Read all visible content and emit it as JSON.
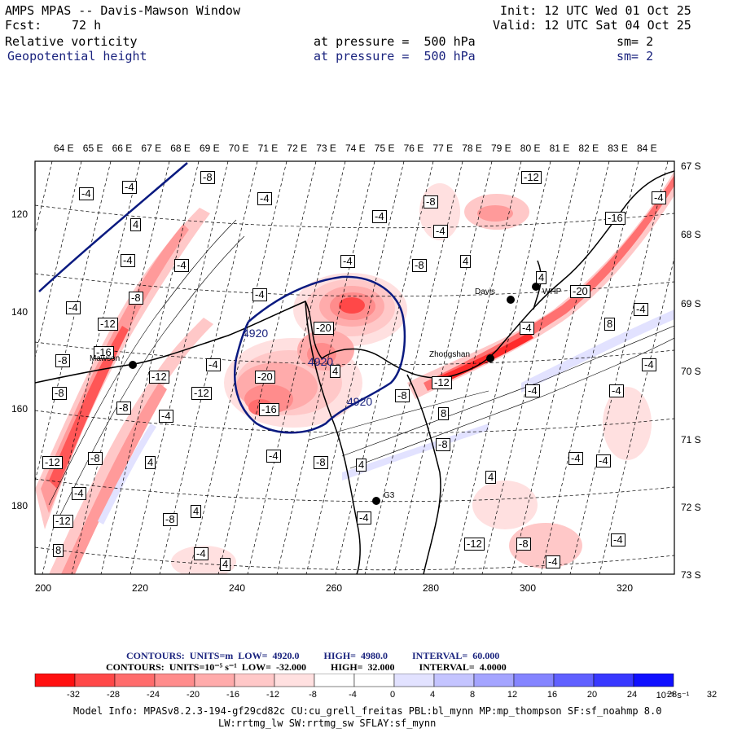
{
  "header": {
    "title": "AMPS MPAS -- Davis-Mawson Window",
    "fcst_label": "Fcst:",
    "fcst_value": "72 h",
    "init": "Init: 12 UTC Wed 01 Oct 25",
    "valid": "Valid: 12 UTC Sat 04 Oct 25",
    "field1": {
      "name": "Relative vorticity",
      "level": "at pressure =  500 hPa",
      "sm": "sm= 2"
    },
    "field2": {
      "name": "Geopotential height",
      "level": "at pressure =  500 hPa",
      "sm": "sm= 2"
    }
  },
  "map": {
    "lon_labels": [
      "64 E",
      "65 E",
      "66 E",
      "67 E",
      "68 E",
      "69 E",
      "70 E",
      "71 E",
      "72 E",
      "73 E",
      "74 E",
      "75 E",
      "76 E",
      "77 E",
      "78 E",
      "79 E",
      "80 E",
      "81 E",
      "82 E",
      "83 E",
      "84 E"
    ],
    "lat_labels": [
      "67 S",
      "68 S",
      "69 S",
      "70 S",
      "71 S",
      "72 S",
      "73 S"
    ],
    "y_ticks": [
      "120",
      "140",
      "160",
      "180"
    ],
    "x_ticks": [
      "200",
      "220",
      "240",
      "260",
      "280",
      "300",
      "320"
    ],
    "stations": {
      "davis": "Davis",
      "mawson": "Mawson",
      "zhongshan": "Zhongshan",
      "g3": "G3",
      "whp": "WHP"
    },
    "height_labels": [
      "4920",
      "4920",
      "4920"
    ],
    "vort_labels": [
      "-4",
      "-4",
      "-8",
      "-4",
      "-4",
      "-8",
      "-4",
      "-12",
      "4",
      "-4",
      "-4",
      "4",
      "-8",
      "-4",
      "-8",
      "-4",
      "-4",
      "4",
      "-12",
      "-12",
      "-4",
      "-20",
      "-16",
      "4",
      "-16",
      "-12",
      "-8",
      "-8",
      "-20",
      "-8",
      "-4",
      "-4",
      "-12",
      "-8",
      "-12",
      "-4",
      "-16",
      "8",
      "-8",
      "-20",
      "-4",
      "4",
      "8",
      "-8",
      "-4",
      "4",
      "-8",
      "-4",
      "-4",
      "-8",
      "-4",
      "-4",
      "-8",
      "-12",
      "-4",
      "-4",
      "-4",
      "-12",
      "4",
      "4",
      "4",
      "-4",
      "-4",
      "-4",
      "8"
    ]
  },
  "legend": {
    "line1": "CONTOURS:  UNITS=m  LOW=  4920.0          HIGH=  4980.0          INTERVAL=  60.000",
    "line2": "CONTOURS:  UNITS=10⁻⁵ s⁻¹  LOW=  -32.000          HIGH=  32.000          INTERVAL=  4.0000",
    "colorbar_labels": [
      "-32",
      "-28",
      "-24",
      "-20",
      "-16",
      "-12",
      "-8",
      "-4",
      "0",
      "4",
      "8",
      "12",
      "16",
      "20",
      "24",
      "28",
      "32"
    ],
    "colorbar_unit": "10⁻⁵ s⁻¹",
    "colors": [
      "#ff1010",
      "#ff4848",
      "#ff6c6c",
      "#ff8c8c",
      "#ffabab",
      "#ffc8c8",
      "#ffe0e0",
      "#ffffff",
      "#ffffff",
      "#e2e2ff",
      "#c4c4ff",
      "#a4a4ff",
      "#8484ff",
      "#6060ff",
      "#3838ff",
      "#1010ff"
    ]
  },
  "footer": {
    "line1": "Model Info: MPASv8.2.3-194-gf29cd82c CU:cu_grell_freitas PBL:bl_mynn MP:mp_thompson SF:sf_noahmp 8.0",
    "line2": "LW:rrtmg_lw SW:rrtmg_sw SFLAY:sf_mynn"
  }
}
